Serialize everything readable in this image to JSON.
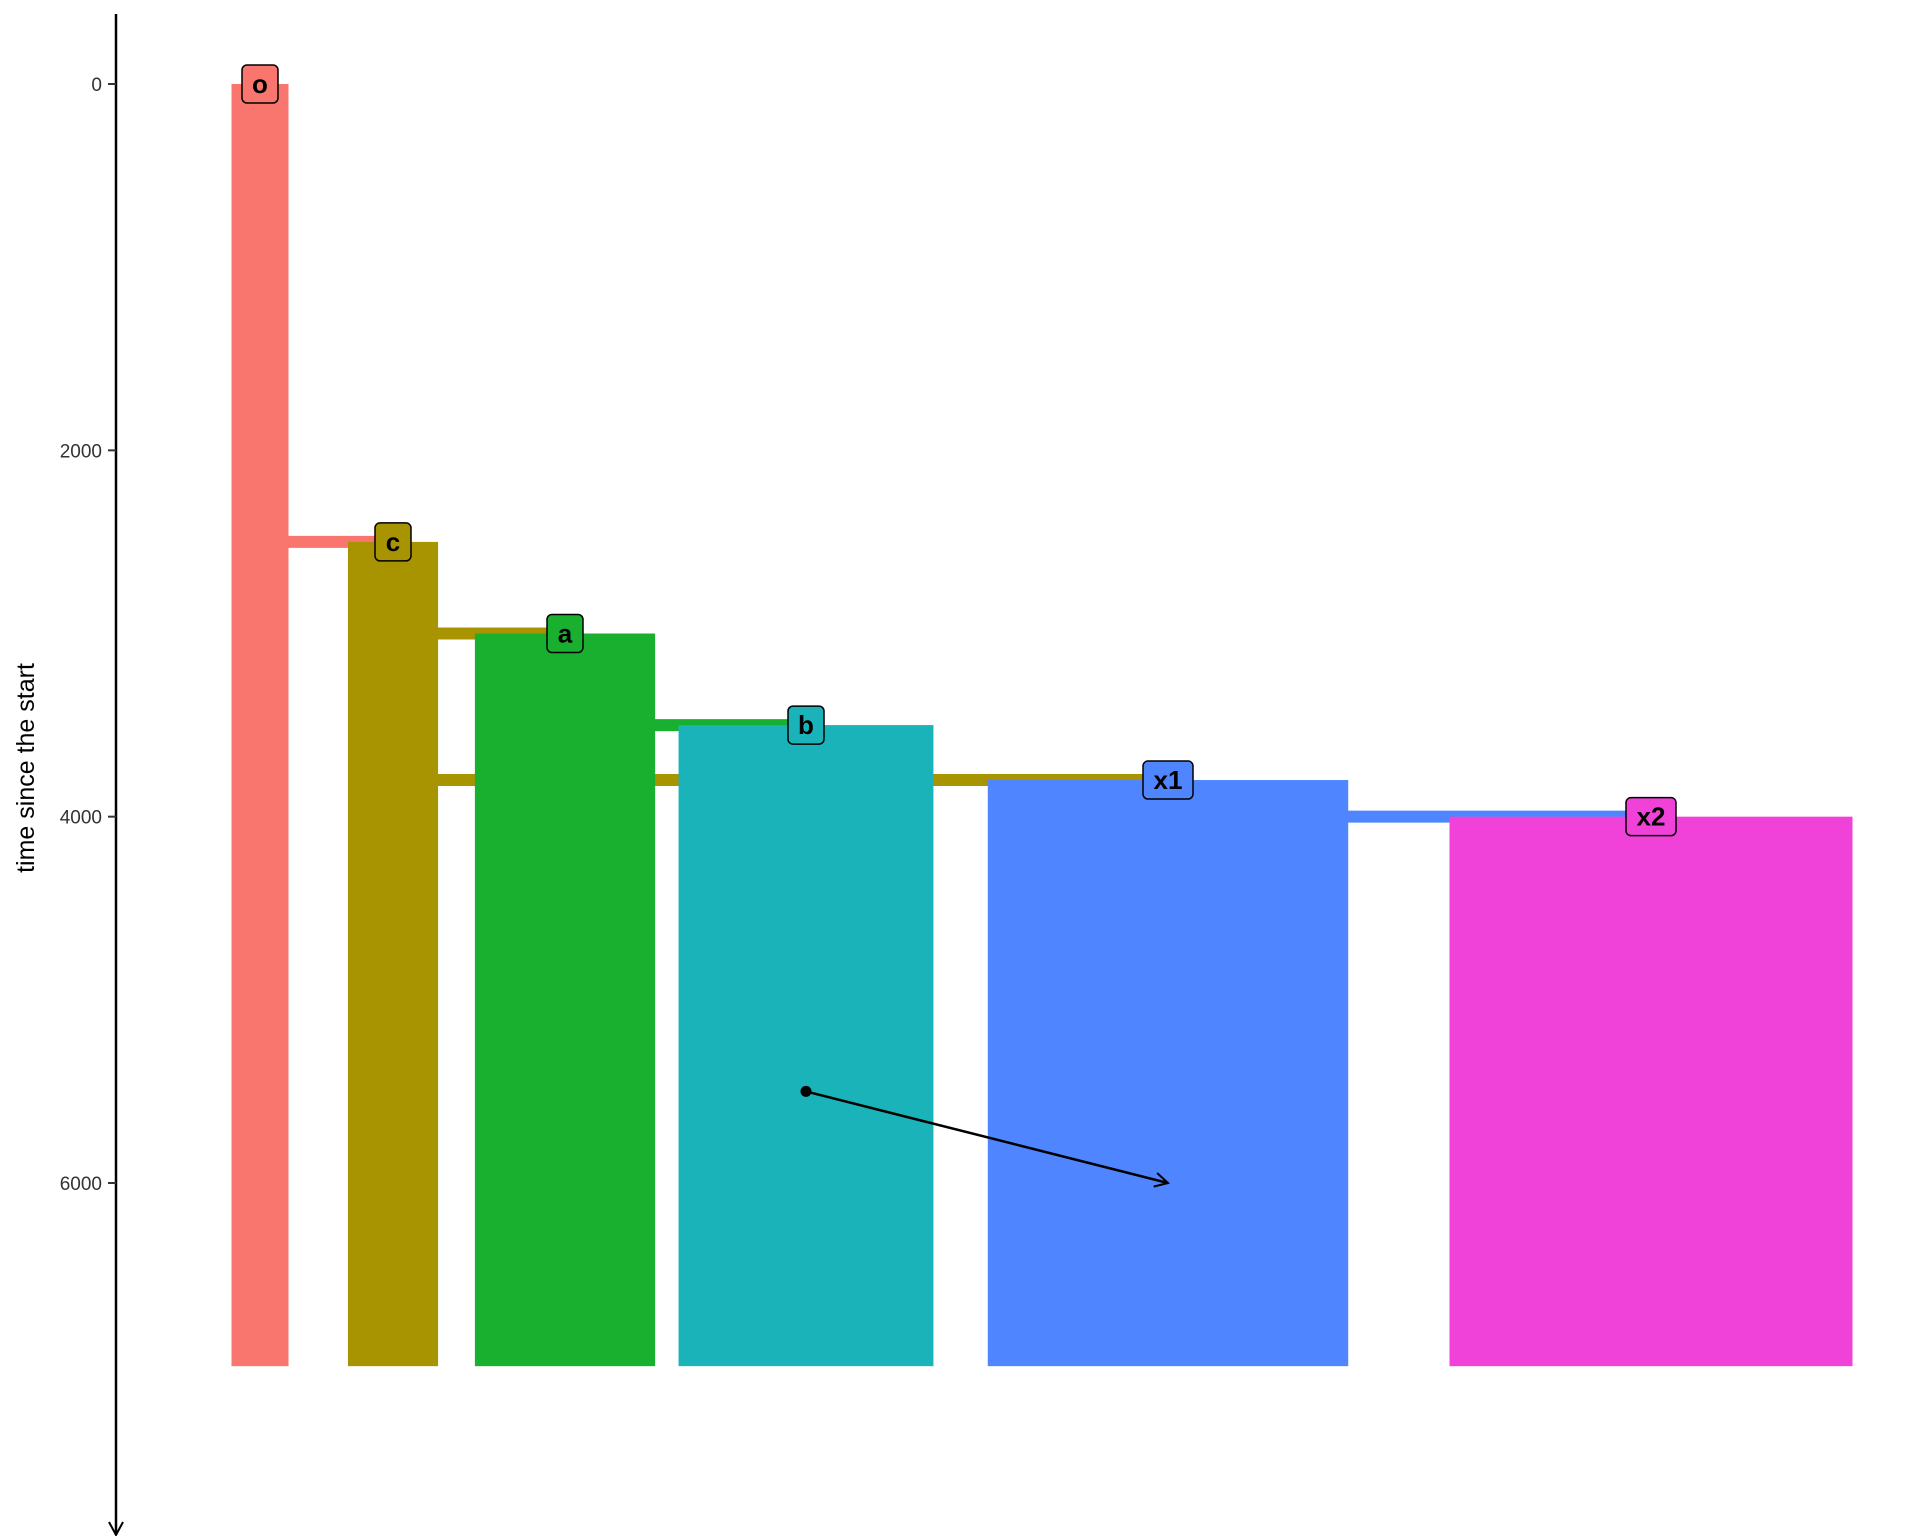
{
  "chart_data": {
    "type": "lineage-tree",
    "ylabel": "time since the start",
    "ylim": [
      -340,
      7200
    ],
    "y_direction": "down",
    "y_ticks": [
      0,
      2000,
      4000,
      6000
    ],
    "populations": [
      {
        "name": "o",
        "color": "#F8766D",
        "start": 0,
        "end": 7000,
        "width": 200
      },
      {
        "name": "c",
        "color": "#A89400",
        "start": 2500,
        "end": 7000,
        "width": 500
      },
      {
        "name": "a",
        "color": "#1AB02F",
        "start": 3000,
        "end": 7000,
        "width": 2000
      },
      {
        "name": "b",
        "color": "#19B3B9",
        "start": 3500,
        "end": 7000,
        "width": 4000
      },
      {
        "name": "x1",
        "color": "#4F86FF",
        "start": 3800,
        "end": 7000,
        "width": 8000
      },
      {
        "name": "x2",
        "color": "#F042D9",
        "start": 4000,
        "end": 7000,
        "width": 10000
      }
    ],
    "splits": [
      {
        "parent": "o",
        "child": "c",
        "time": 2500
      },
      {
        "parent": "c",
        "child": "a",
        "time": 3000
      },
      {
        "parent": "a",
        "child": "b",
        "time": 3500
      },
      {
        "parent": "c",
        "child": "x1",
        "time": 3800
      },
      {
        "parent": "x1",
        "child": "x2",
        "time": 4000
      }
    ],
    "gene_flow": [
      {
        "from": "b",
        "to": "x1",
        "start": 5500,
        "end": 6000
      }
    ]
  }
}
